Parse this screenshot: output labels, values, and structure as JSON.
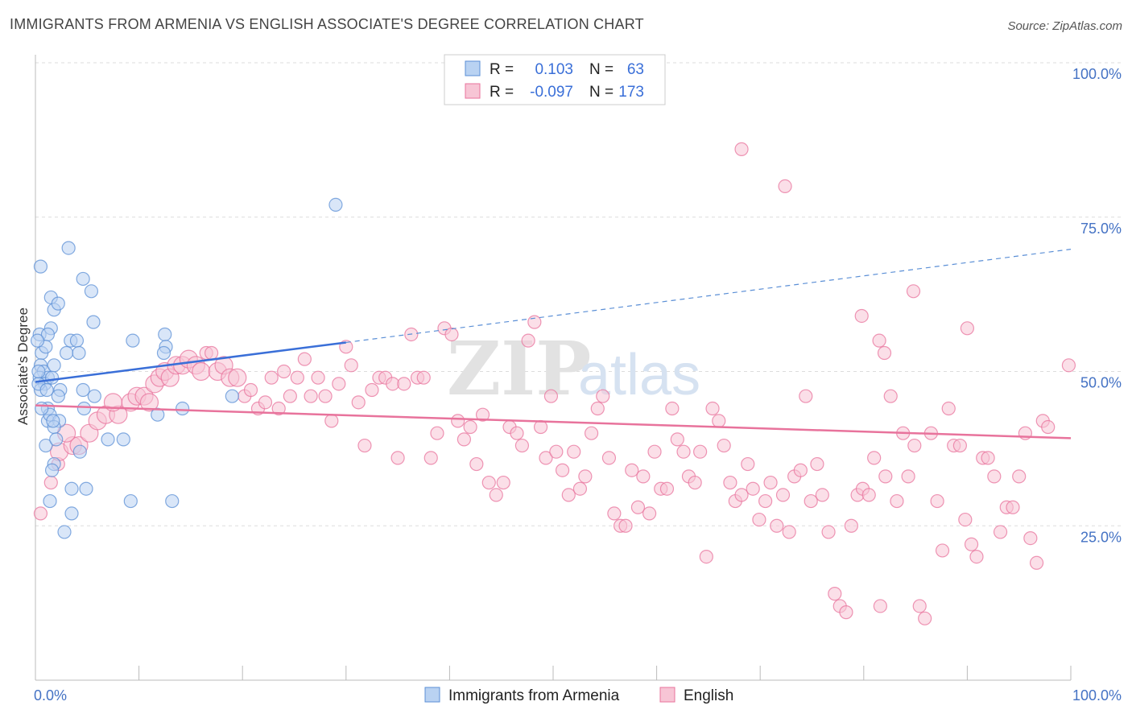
{
  "title": "IMMIGRANTS FROM ARMENIA VS ENGLISH ASSOCIATE'S DEGREE CORRELATION CHART",
  "source": "Source: ZipAtlas.com",
  "watermark": {
    "zip": "ZIP",
    "atlas": "atlas"
  },
  "colors": {
    "blue": "#5b8fd6",
    "blue_fill": "#b9d2f2",
    "pink": "#e8739c",
    "pink_fill": "#f7c5d5",
    "accent_text": "#3a6fd8"
  },
  "legend": {
    "rows": [
      {
        "r_label": "R =",
        "r_value": "0.103",
        "n_label": "N =",
        "n_value": "63"
      },
      {
        "r_label": "R =",
        "r_value": "-0.097",
        "n_label": "N =",
        "n_value": "173"
      }
    ]
  },
  "chart_data": {
    "type": "scatter",
    "xlabel": "",
    "ylabel": "Associate's Degree",
    "xlim": [
      0,
      100
    ],
    "ylim": [
      0,
      100
    ],
    "x_tick_labels": [
      "0.0%",
      "100.0%"
    ],
    "y_tick_labels": [
      "100.0%",
      "75.0%",
      "50.0%",
      "25.0%"
    ],
    "y_ticks": [
      100,
      75,
      50,
      25
    ],
    "grid": true,
    "legend_position": "top-center",
    "series": [
      {
        "name": "Immigrants from Armenia",
        "color": "#5b8fd6",
        "trend": {
          "x0": 0,
          "y0": 48.3,
          "x1": 30,
          "y1": 54.7,
          "dashed_to_x": 100,
          "dashed_to_y": 69.8
        },
        "points": [
          [
            0.5,
            67
          ],
          [
            1.5,
            62
          ],
          [
            1.8,
            60
          ],
          [
            1.5,
            57
          ],
          [
            0.4,
            56
          ],
          [
            1.2,
            56
          ],
          [
            2.2,
            61
          ],
          [
            0.6,
            53
          ],
          [
            1.0,
            54
          ],
          [
            0.5,
            51
          ],
          [
            0.8,
            50
          ],
          [
            0.4,
            49
          ],
          [
            1.2,
            49
          ],
          [
            0.9,
            48
          ],
          [
            1.6,
            49
          ],
          [
            0.5,
            47
          ],
          [
            1.8,
            51
          ],
          [
            2.4,
            47
          ],
          [
            2.2,
            46
          ],
          [
            3.2,
            70
          ],
          [
            4.6,
            65
          ],
          [
            5.4,
            63
          ],
          [
            5.6,
            58
          ],
          [
            3.0,
            53
          ],
          [
            3.4,
            55
          ],
          [
            4.0,
            55
          ],
          [
            4.2,
            53
          ],
          [
            4.6,
            47
          ],
          [
            5.7,
            46
          ],
          [
            4.7,
            44
          ],
          [
            1.2,
            44
          ],
          [
            1.2,
            42
          ],
          [
            1.4,
            43
          ],
          [
            2.3,
            42
          ],
          [
            1.8,
            41
          ],
          [
            1.0,
            38
          ],
          [
            7.0,
            39
          ],
          [
            8.5,
            39
          ],
          [
            1.8,
            35
          ],
          [
            1.6,
            34
          ],
          [
            4.3,
            37
          ],
          [
            3.5,
            31
          ],
          [
            4.9,
            31
          ],
          [
            1.4,
            29
          ],
          [
            9.2,
            29
          ],
          [
            3.5,
            27
          ],
          [
            2.8,
            24
          ],
          [
            13.2,
            29
          ],
          [
            12.5,
            56
          ],
          [
            9.4,
            55
          ],
          [
            12.6,
            54
          ],
          [
            12.4,
            53
          ],
          [
            11.8,
            43
          ],
          [
            14.2,
            44
          ],
          [
            19.0,
            46
          ],
          [
            29.0,
            77
          ],
          [
            0.3,
            48
          ],
          [
            1.1,
            47
          ],
          [
            0.2,
            55
          ],
          [
            0.6,
            44
          ],
          [
            1.7,
            42
          ],
          [
            2.0,
            39
          ],
          [
            0.3,
            50
          ]
        ]
      },
      {
        "name": "English",
        "color": "#e8739c",
        "trend": {
          "x0": 0,
          "y0": 44.5,
          "x1": 100,
          "y1": 39.2
        },
        "points": [
          [
            0.5,
            27
          ],
          [
            1.5,
            32
          ],
          [
            2.2,
            35
          ],
          [
            2.3,
            37
          ],
          [
            3.6,
            38
          ],
          [
            4.2,
            38
          ],
          [
            5.2,
            40
          ],
          [
            3.0,
            40
          ],
          [
            6.0,
            42
          ],
          [
            6.8,
            43
          ],
          [
            8.0,
            43
          ],
          [
            7.5,
            45
          ],
          [
            9.2,
            45
          ],
          [
            9.8,
            46
          ],
          [
            10.5,
            46
          ],
          [
            11.0,
            45
          ],
          [
            11.5,
            48
          ],
          [
            12.0,
            49
          ],
          [
            12.5,
            50
          ],
          [
            13.0,
            49
          ],
          [
            13.6,
            51
          ],
          [
            14.2,
            51
          ],
          [
            14.8,
            52
          ],
          [
            15.5,
            51
          ],
          [
            16.0,
            50
          ],
          [
            16.5,
            53
          ],
          [
            17.0,
            53
          ],
          [
            17.6,
            50
          ],
          [
            18.2,
            51
          ],
          [
            18.8,
            49
          ],
          [
            19.5,
            49
          ],
          [
            20.2,
            46
          ],
          [
            20.8,
            47
          ],
          [
            21.5,
            44
          ],
          [
            22.2,
            45
          ],
          [
            22.8,
            49
          ],
          [
            23.5,
            44
          ],
          [
            24.0,
            50
          ],
          [
            24.6,
            46
          ],
          [
            25.3,
            49
          ],
          [
            26.0,
            52
          ],
          [
            26.6,
            46
          ],
          [
            27.3,
            49
          ],
          [
            28.0,
            46
          ],
          [
            28.6,
            42
          ],
          [
            29.3,
            48
          ],
          [
            30.0,
            54
          ],
          [
            30.5,
            51
          ],
          [
            31.2,
            45
          ],
          [
            31.8,
            38
          ],
          [
            32.5,
            47
          ],
          [
            33.2,
            49
          ],
          [
            33.8,
            49
          ],
          [
            34.5,
            48
          ],
          [
            35.0,
            36
          ],
          [
            35.6,
            48
          ],
          [
            36.3,
            56
          ],
          [
            36.9,
            49
          ],
          [
            37.5,
            49
          ],
          [
            38.2,
            36
          ],
          [
            38.8,
            40
          ],
          [
            39.5,
            57
          ],
          [
            40.2,
            56
          ],
          [
            40.8,
            42
          ],
          [
            41.4,
            39
          ],
          [
            42.0,
            41
          ],
          [
            42.6,
            35
          ],
          [
            43.2,
            43
          ],
          [
            43.8,
            32
          ],
          [
            44.5,
            30
          ],
          [
            45.2,
            32
          ],
          [
            45.8,
            41
          ],
          [
            46.5,
            40
          ],
          [
            47.0,
            38
          ],
          [
            47.6,
            55
          ],
          [
            48.2,
            58
          ],
          [
            48.8,
            41
          ],
          [
            49.3,
            36
          ],
          [
            49.8,
            46
          ],
          [
            50.3,
            37
          ],
          [
            50.9,
            34
          ],
          [
            51.5,
            30
          ],
          [
            52.0,
            37
          ],
          [
            52.6,
            31
          ],
          [
            53.1,
            33
          ],
          [
            53.7,
            40
          ],
          [
            54.3,
            44
          ],
          [
            54.8,
            46
          ],
          [
            55.4,
            36
          ],
          [
            55.9,
            27
          ],
          [
            56.5,
            25
          ],
          [
            57.0,
            25
          ],
          [
            57.6,
            34
          ],
          [
            58.2,
            28
          ],
          [
            58.7,
            33
          ],
          [
            59.3,
            27
          ],
          [
            59.8,
            37
          ],
          [
            60.4,
            31
          ],
          [
            61.0,
            31
          ],
          [
            61.5,
            44
          ],
          [
            62.0,
            39
          ],
          [
            62.6,
            37
          ],
          [
            63.1,
            33
          ],
          [
            63.7,
            32
          ],
          [
            64.2,
            37
          ],
          [
            64.8,
            20
          ],
          [
            65.4,
            44
          ],
          [
            66.0,
            42
          ],
          [
            66.5,
            38
          ],
          [
            67.1,
            32
          ],
          [
            67.6,
            29
          ],
          [
            68.2,
            30
          ],
          [
            68.8,
            35
          ],
          [
            69.3,
            31
          ],
          [
            69.9,
            26
          ],
          [
            70.5,
            29
          ],
          [
            71.0,
            32
          ],
          [
            71.6,
            25
          ],
          [
            72.2,
            30
          ],
          [
            72.8,
            24
          ],
          [
            73.3,
            33
          ],
          [
            73.9,
            34
          ],
          [
            74.4,
            46
          ],
          [
            74.9,
            29
          ],
          [
            75.5,
            35
          ],
          [
            76.0,
            30
          ],
          [
            76.6,
            24
          ],
          [
            77.2,
            14
          ],
          [
            77.7,
            12
          ],
          [
            78.3,
            11
          ],
          [
            78.8,
            25
          ],
          [
            79.4,
            30
          ],
          [
            79.9,
            31
          ],
          [
            80.5,
            30
          ],
          [
            81.0,
            36
          ],
          [
            81.6,
            12
          ],
          [
            82.1,
            33
          ],
          [
            82.6,
            46
          ],
          [
            83.2,
            29
          ],
          [
            83.8,
            40
          ],
          [
            84.3,
            33
          ],
          [
            84.9,
            38
          ],
          [
            85.4,
            12
          ],
          [
            85.9,
            10
          ],
          [
            86.5,
            40
          ],
          [
            87.1,
            29
          ],
          [
            87.6,
            21
          ],
          [
            88.2,
            44
          ],
          [
            88.7,
            38
          ],
          [
            89.3,
            38
          ],
          [
            89.8,
            26
          ],
          [
            90.4,
            22
          ],
          [
            90.9,
            20
          ],
          [
            91.5,
            36
          ],
          [
            92.0,
            36
          ],
          [
            92.6,
            33
          ],
          [
            93.2,
            24
          ],
          [
            93.8,
            28
          ],
          [
            94.4,
            28
          ],
          [
            95.0,
            33
          ],
          [
            95.6,
            40
          ],
          [
            96.1,
            23
          ],
          [
            96.7,
            19
          ],
          [
            97.3,
            42
          ],
          [
            97.8,
            41
          ],
          [
            99.8,
            51
          ],
          [
            68.2,
            86
          ],
          [
            72.4,
            80
          ],
          [
            79.8,
            59
          ],
          [
            81.5,
            55
          ],
          [
            82.0,
            53
          ],
          [
            84.8,
            63
          ],
          [
            90.0,
            57
          ]
        ]
      }
    ]
  },
  "bottom_legend": {
    "items": [
      {
        "label": "Immigrants from Armenia"
      },
      {
        "label": "English"
      }
    ]
  }
}
